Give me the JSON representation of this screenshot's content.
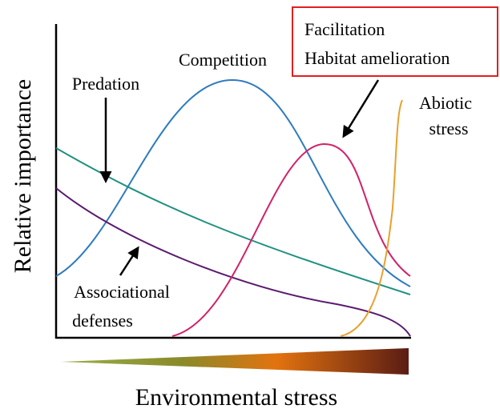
{
  "diagram": {
    "y_axis_label": "Relative importance",
    "x_axis_label": "Environmental stress",
    "curves": [
      {
        "label": "Competition"
      },
      {
        "label": "Predation"
      },
      {
        "label_lines": [
          "Associational",
          "defenses"
        ]
      },
      {
        "label_lines": [
          "Facilitation",
          "Habitat amelioration"
        ]
      },
      {
        "label_lines": [
          "Abiotic",
          "stress"
        ]
      }
    ]
  }
}
